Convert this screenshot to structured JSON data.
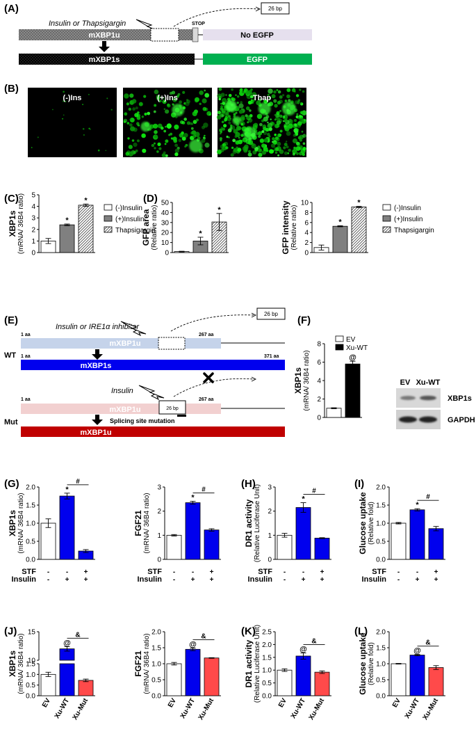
{
  "panels": {
    "A": {
      "label": "(A)",
      "trigger": "Insulin or Thapsigargin",
      "box": "26 bp",
      "stop": "STOP",
      "mxbp1u": "mXBP1u",
      "no_egfp": "No EGFP",
      "mxbp1s": "mXBP1s",
      "egfp": "EGFP",
      "colors": {
        "u_bar": "#808080",
        "no_egfp": "#e6e0ee",
        "s_bar": "#000000",
        "egfp": "#00b050"
      }
    },
    "B": {
      "label": "(B)",
      "images": [
        {
          "title": "(-)Ins",
          "density": 0.02
        },
        {
          "title": "(+)Ins",
          "density": 0.35
        },
        {
          "title": "Thap",
          "density": 0.85
        }
      ]
    },
    "legend_insulin": [
      "(-)Insulin",
      "(+)Insulin",
      "Thapsigargin"
    ],
    "E": {
      "label": "(E)",
      "trigger_wt": "Insulin or IRE1α inhibitor",
      "box": "26 bp",
      "wt": "WT",
      "mut": "Mut",
      "aa1": "1 aa",
      "aa267": "267 aa",
      "aa371": "371 aa",
      "mxbp1u": "mXBP1u",
      "mxbp1s": "mXBP1s",
      "insulin": "Insulin",
      "splice_mut": "Splicing site mutation",
      "mut_product": "mXBP1u",
      "colors": {
        "wt_u": "#c5d3ea",
        "wt_s": "#0000ee",
        "mut_u": "#f2d0d0",
        "mut_s": "#c00000"
      }
    },
    "F": {
      "label": "(F)",
      "legend": [
        "EV",
        "Xu-WT"
      ],
      "blot_cols": [
        "EV",
        "Xu-WT"
      ],
      "blot_rows": [
        "XBP1s",
        "GAPDH"
      ]
    },
    "GI_x": {
      "rows": [
        "STF",
        "Insulin"
      ],
      "STF": [
        "-",
        "-",
        "+"
      ],
      "Insulin": [
        "-",
        "+",
        "+"
      ]
    },
    "JL_x": [
      "EV",
      "Xu-WT",
      "Xu-Mut"
    ]
  },
  "chart_data": [
    {
      "id": "C",
      "label": "(C)",
      "type": "bar",
      "ylabel": "XBP1s",
      "ysub": "(mRNA/ 36B4 ratio)",
      "ylim": [
        0,
        5
      ],
      "ticks": [
        0,
        1,
        2,
        3,
        4,
        5
      ],
      "values": [
        1.0,
        2.4,
        4.1
      ],
      "errors": [
        0.22,
        0.07,
        0.1
      ],
      "annot": [
        "",
        "*",
        "*"
      ],
      "styles": [
        "white",
        "gray",
        "hatch"
      ]
    },
    {
      "id": "D1",
      "label": "(D)",
      "type": "bar",
      "ylabel": "GFP area",
      "ysub": "(Relative ratio)",
      "ylim": [
        0,
        50
      ],
      "ticks": [
        0,
        10,
        20,
        30,
        40,
        50
      ],
      "values": [
        1.0,
        11.5,
        30.5
      ],
      "errors": [
        0.3,
        3.8,
        8.5
      ],
      "annot": [
        "",
        "*",
        "*"
      ],
      "styles": [
        "white",
        "gray",
        "hatch"
      ]
    },
    {
      "id": "D2",
      "label": "",
      "type": "bar",
      "ylabel": "GFP intensity",
      "ysub": "(Relative ratio)",
      "ylim": [
        0,
        10
      ],
      "ticks": [
        0,
        2,
        4,
        6,
        8,
        10
      ],
      "values": [
        1.0,
        5.25,
        9.1
      ],
      "errors": [
        0.5,
        0.1,
        0.12
      ],
      "annot": [
        "",
        "*",
        "*"
      ],
      "styles": [
        "white",
        "gray",
        "hatch"
      ]
    },
    {
      "id": "F",
      "label": "(F)",
      "type": "bar",
      "ylabel": "XBP1s",
      "ysub": "(mRNA/ 36B4 ratio)",
      "ylim": [
        0,
        8
      ],
      "ticks": [
        0,
        2,
        4,
        6,
        8
      ],
      "values": [
        1.0,
        5.8
      ],
      "errors": [
        0.05,
        0.3
      ],
      "annot": [
        "",
        "@"
      ],
      "styles": [
        "white",
        "black"
      ]
    },
    {
      "id": "G1",
      "label": "(G)",
      "type": "bar",
      "ylabel": "XBP1s",
      "ysub": "(mRNA/ 36B4 ratio)",
      "ylim": [
        0,
        2.0
      ],
      "ticks": [
        0,
        0.5,
        1.0,
        1.5,
        2.0
      ],
      "tick_labels": [
        "0.0",
        "0.5",
        "1.0",
        "1.5",
        "2.0"
      ],
      "values": [
        1.0,
        1.75,
        0.23
      ],
      "errors": [
        0.12,
        0.08,
        0.04
      ],
      "annot": [
        "",
        "*",
        ""
      ],
      "bracket": "#",
      "styles": [
        "white",
        "blue",
        "blue"
      ]
    },
    {
      "id": "G2",
      "label": "",
      "type": "bar",
      "ylabel": "FGF21",
      "ysub": "(mRNA/ 36B4 ratio)",
      "ylim": [
        0,
        3
      ],
      "ticks": [
        0,
        1,
        2,
        3
      ],
      "values": [
        1.0,
        2.35,
        1.22
      ],
      "errors": [
        0.03,
        0.06,
        0.05
      ],
      "annot": [
        "",
        "*",
        ""
      ],
      "bracket": "#",
      "styles": [
        "white",
        "blue",
        "blue"
      ]
    },
    {
      "id": "H",
      "label": "(H)",
      "type": "bar",
      "ylabel": "DR1 activity",
      "ysub": "(Relative Luciferase Unit)",
      "ylim": [
        0,
        3
      ],
      "ticks": [
        0,
        1,
        2,
        3
      ],
      "values": [
        1.0,
        2.15,
        0.88
      ],
      "errors": [
        0.08,
        0.2,
        0.02
      ],
      "annot": [
        "",
        "*",
        ""
      ],
      "bracket": "#",
      "styles": [
        "white",
        "blue",
        "blue"
      ]
    },
    {
      "id": "I",
      "label": "(I)",
      "type": "bar",
      "ylabel": "Glucose uptake",
      "ysub": "(Relative fold)",
      "ylim": [
        0,
        2.0
      ],
      "ticks": [
        0,
        0.5,
        1.0,
        1.5,
        2.0
      ],
      "tick_labels": [
        "0.0",
        "0.5",
        "1.0",
        "1.5",
        "2.0"
      ],
      "values": [
        1.0,
        1.37,
        0.85
      ],
      "errors": [
        0.02,
        0.03,
        0.06
      ],
      "annot": [
        "",
        "*",
        ""
      ],
      "bracket": "#",
      "styles": [
        "white",
        "blue",
        "blue"
      ]
    },
    {
      "id": "J1",
      "label": "(J)",
      "type": "bar",
      "ylabel": "XBP1s",
      "ysub": "(mRNA/ 36B4 ratio)",
      "broken": true,
      "ylim": [
        0,
        15
      ],
      "ticks": [
        0,
        0.5,
        1.0,
        1.5,
        10,
        15
      ],
      "tick_labels": [
        "0.0",
        "0.5",
        "1.0",
        "1.5",
        "10",
        "15"
      ],
      "values": [
        1.0,
        12.0,
        0.72
      ],
      "errors": [
        0.1,
        0.4,
        0.06
      ],
      "annot": [
        "",
        "@",
        ""
      ],
      "bracket": "&",
      "styles": [
        "white",
        "blue",
        "red"
      ]
    },
    {
      "id": "J2",
      "label": "",
      "type": "bar",
      "ylabel": "FGF21",
      "ysub": "(mRNA/ 36B4 ratio)",
      "ylim": [
        0,
        2.0
      ],
      "ticks": [
        0,
        0.5,
        1.0,
        1.5,
        2.0
      ],
      "tick_labels": [
        "0.0",
        "0.5",
        "1.0",
        "1.5",
        "2.0"
      ],
      "values": [
        1.0,
        1.45,
        1.18
      ],
      "errors": [
        0.04,
        0.04,
        0.01
      ],
      "annot": [
        "",
        "@",
        ""
      ],
      "bracket": "&",
      "styles": [
        "white",
        "blue",
        "red"
      ]
    },
    {
      "id": "K",
      "label": "(K)",
      "type": "bar",
      "ylabel": "DR1 activity",
      "ysub": "(Relative Luciferase Unit)",
      "ylim": [
        0,
        2.5
      ],
      "ticks": [
        0,
        0.5,
        1.0,
        1.5,
        2.0,
        2.5
      ],
      "tick_labels": [
        "0.0",
        "0.5",
        "1.0",
        "1.5",
        "2.0",
        "2.5"
      ],
      "values": [
        1.0,
        1.55,
        0.92
      ],
      "errors": [
        0.05,
        0.12,
        0.05
      ],
      "annot": [
        "",
        "@",
        ""
      ],
      "bracket": "&",
      "styles": [
        "white",
        "blue",
        "red"
      ]
    },
    {
      "id": "L",
      "label": "(L)",
      "type": "bar",
      "ylabel": "Glucose uptake",
      "ysub": "(Relative fold)",
      "ylim": [
        0,
        2.0
      ],
      "ticks": [
        0,
        0.5,
        1.0,
        1.5,
        2.0
      ],
      "tick_labels": [
        "0.0",
        "0.5",
        "1.0",
        "1.5",
        "2.0"
      ],
      "values": [
        1.0,
        1.27,
        0.88
      ],
      "errors": [
        0.01,
        0.02,
        0.06
      ],
      "annot": [
        "",
        "@",
        ""
      ],
      "bracket": "&",
      "styles": [
        "white",
        "blue",
        "red"
      ]
    }
  ]
}
